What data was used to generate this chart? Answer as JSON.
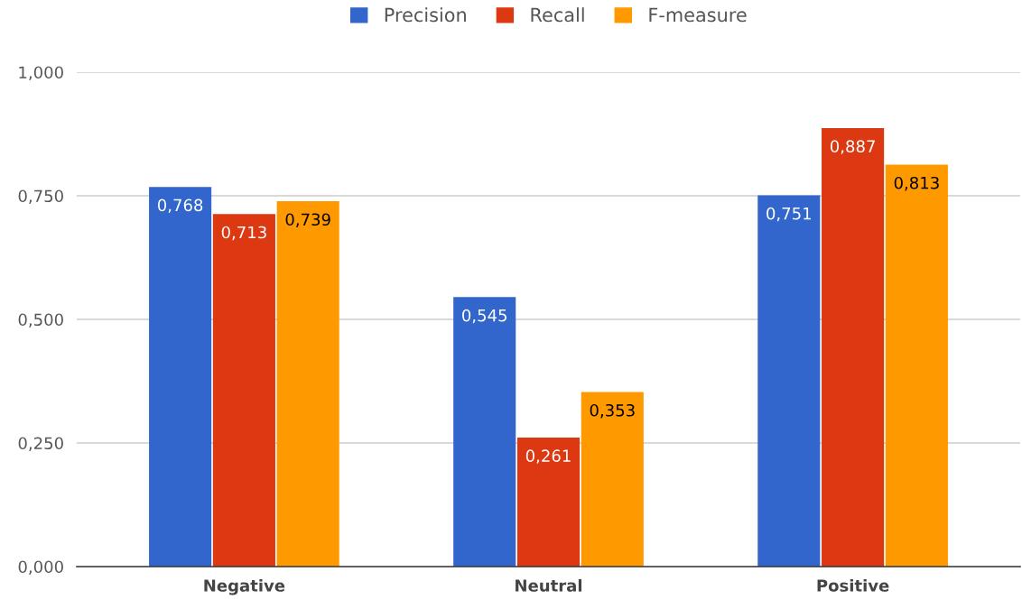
{
  "chart_data": {
    "type": "bar",
    "categories": [
      "Negative",
      "Neutral",
      "Positive"
    ],
    "series": [
      {
        "name": "Precision",
        "color": "#3366cc",
        "values": [
          0.768,
          0.545,
          0.751
        ],
        "value_labels": [
          "0,768",
          "0,545",
          "0,751"
        ]
      },
      {
        "name": "Recall",
        "color": "#dc3912",
        "values": [
          0.713,
          0.261,
          0.887
        ],
        "value_labels": [
          "0,713",
          "0,261",
          "0,887"
        ]
      },
      {
        "name": "F-measure",
        "color": "#ff9900",
        "values": [
          0.739,
          0.353,
          0.813
        ],
        "value_labels": [
          "0,739",
          "0,353",
          "0,813"
        ]
      }
    ],
    "ylim": [
      0,
      1
    ],
    "yticks": [
      {
        "value": 0,
        "label": "0,000"
      },
      {
        "value": 0.25,
        "label": "0,250"
      },
      {
        "value": 0.5,
        "label": "0,500"
      },
      {
        "value": 0.75,
        "label": "0,750"
      },
      {
        "value": 1,
        "label": "1,000"
      }
    ],
    "grid": "y",
    "legend": "top"
  }
}
